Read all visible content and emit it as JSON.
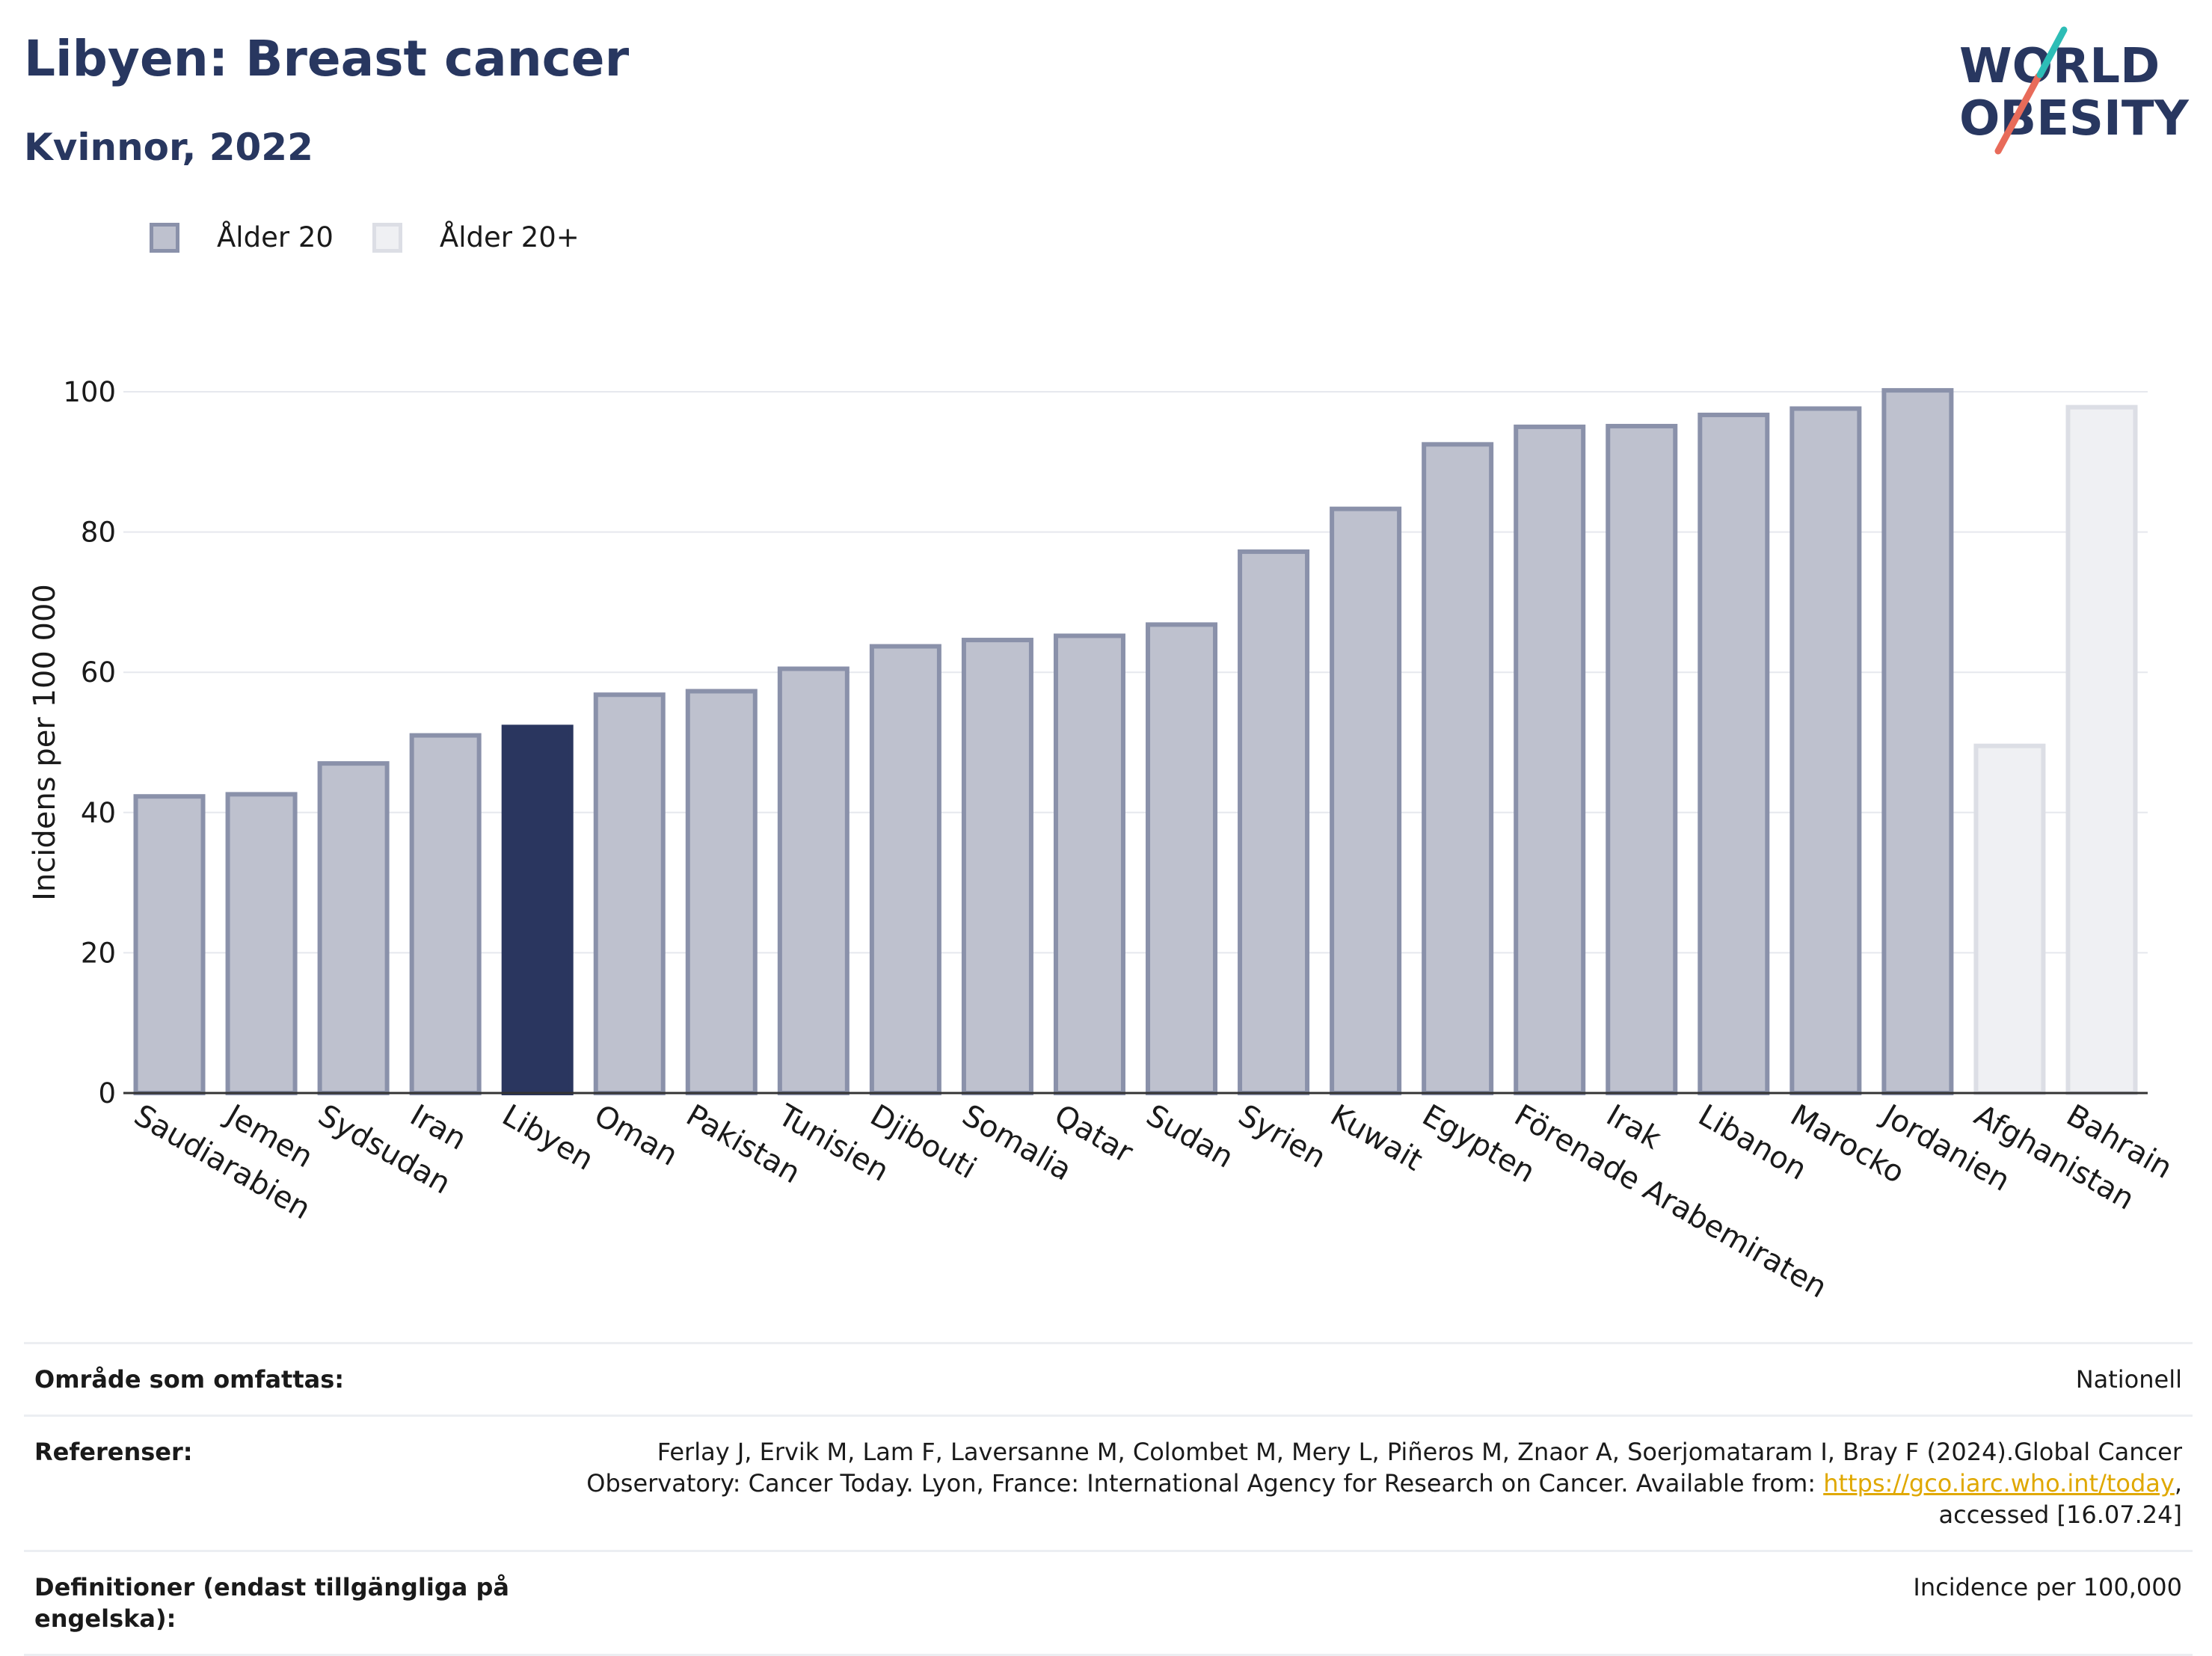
{
  "header": {
    "title": "Libyen: Breast cancer",
    "subtitle": "Kvinnor, 2022"
  },
  "logo": {
    "line1": "WORLD",
    "line2": "OBESITY"
  },
  "legend": [
    {
      "label": "Ålder 20"
    },
    {
      "label": "Ålder 20+"
    }
  ],
  "colors": {
    "bar_fill": "#bec1ce",
    "bar_stroke": "#8a91aa",
    "highlight": "#2a365f",
    "bar_fill_20plus": "#eff0f3",
    "bar_stroke_20plus": "#dcdee5",
    "title": "#283760"
  },
  "chart_data": {
    "type": "bar",
    "ylabel": "Incidens per 100 000",
    "ylim": [
      0,
      100
    ],
    "yticks": [
      0,
      20,
      40,
      60,
      80,
      100
    ],
    "grid": true,
    "legend_position": "top-left",
    "highlight": "Libyen",
    "categories": [
      "Saudiarabien",
      "Jemen",
      "Sydsudan",
      "Iran",
      "Libyen",
      "Oman",
      "Pakistan",
      "Tunisien",
      "Djibouti",
      "Somalia",
      "Qatar",
      "Sudan",
      "Syrien",
      "Kuwait",
      "Egypten",
      "Förenade Arabemiraten",
      "Irak",
      "Libanon",
      "Marocko",
      "Jordanien",
      "Afghanistan",
      "Bahrain"
    ],
    "values": [
      42.3,
      42.6,
      47.0,
      51.0,
      52.2,
      56.8,
      57.3,
      60.5,
      63.7,
      64.6,
      65.2,
      66.8,
      77.2,
      83.3,
      92.5,
      95.0,
      95.1,
      96.7,
      97.6,
      100.2,
      49.5,
      97.8
    ],
    "age_group": [
      "Ålder 20",
      "Ålder 20",
      "Ålder 20",
      "Ålder 20",
      "Ålder 20",
      "Ålder 20",
      "Ålder 20",
      "Ålder 20",
      "Ålder 20",
      "Ålder 20",
      "Ålder 20",
      "Ålder 20",
      "Ålder 20",
      "Ålder 20",
      "Ålder 20",
      "Ålder 20",
      "Ålder 20",
      "Ålder 20",
      "Ålder 20",
      "Ålder 20",
      "Ålder 20+",
      "Ålder 20+"
    ]
  },
  "meta": {
    "coverage_label": "Område som omfattas:",
    "coverage_value": "Nationell",
    "references_label": "Referenser:",
    "references_text_1": "Ferlay J, Ervik M, Lam F, Laversanne M, Colombet M, Mery L, Piñeros M, Znaor A, Soerjomataram I, Bray F (2024).Global Cancer Observatory: Cancer Today. Lyon, France: International Agency for Research on Cancer. Available from: ",
    "references_link": "https://gco.iarc.who.int/today",
    "references_text_2": ", accessed [16.07.24]",
    "definitions_label": "Definitioner (endast tillgängliga på engelska):",
    "definitions_value": "Incidence per 100,000"
  }
}
